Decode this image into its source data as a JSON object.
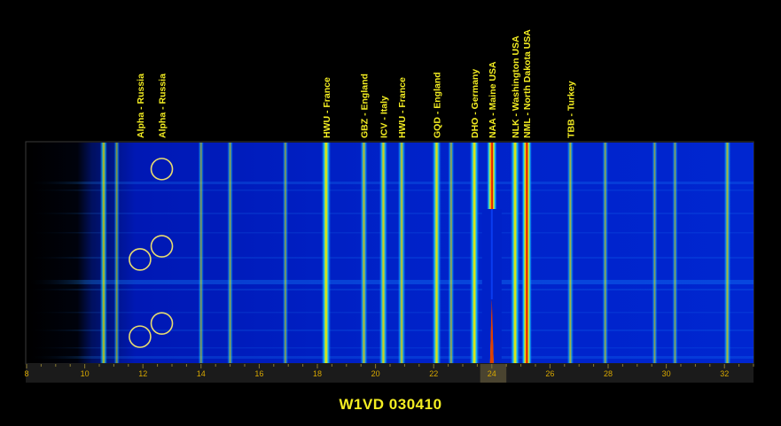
{
  "caption": "W1VD  030410",
  "colors": {
    "background": "#000000",
    "label_text": "#f4ee22",
    "axis_text": "#d8a800",
    "axis_bar": "#1b1b1b",
    "spectrum_low": "#0010a8",
    "spectrum_mid": "#14d8f0",
    "spectrum_high": "#f4e800",
    "spectrum_peak": "#d40000",
    "circle_marker": "#e8dc70"
  },
  "chart_data": {
    "type": "heatmap",
    "title": "",
    "xlabel": "",
    "ylabel": "",
    "x_unit": "kHz",
    "xlim": [
      8,
      33
    ],
    "x_ticks": [
      8,
      10,
      12,
      14,
      16,
      18,
      20,
      22,
      24,
      26,
      28,
      30,
      32
    ],
    "highlight_range": [
      23.6,
      24.5
    ],
    "stations": [
      {
        "label": "Alpha - Russia",
        "freq": 11.9
      },
      {
        "label": "Alpha - Russia",
        "freq": 12.65
      },
      {
        "label": "HWU - France",
        "freq": 18.3
      },
      {
        "label": "GBZ - England",
        "freq": 19.6
      },
      {
        "label": "ICV - Italy",
        "freq": 20.27
      },
      {
        "label": "HWU - France",
        "freq": 20.9
      },
      {
        "label": "GQD - England",
        "freq": 22.1
      },
      {
        "label": "DHO - Germany",
        "freq": 23.4
      },
      {
        "label": "NAA - Maine USA",
        "freq": 24.0
      },
      {
        "label": "NLK - Washington USA",
        "freq": 24.8
      },
      {
        "label": "NML - North Dakota USA",
        "freq": 25.2
      },
      {
        "label": "TBB - Turkey",
        "freq": 26.7
      }
    ],
    "carriers": [
      {
        "freq": 10.65,
        "level": 0.55
      },
      {
        "freq": 11.1,
        "level": 0.3
      },
      {
        "freq": 14.0,
        "level": 0.3
      },
      {
        "freq": 15.0,
        "level": 0.35
      },
      {
        "freq": 16.9,
        "level": 0.3
      },
      {
        "freq": 18.3,
        "level": 0.85
      },
      {
        "freq": 19.6,
        "level": 0.55
      },
      {
        "freq": 20.27,
        "level": 0.7
      },
      {
        "freq": 20.9,
        "level": 0.6
      },
      {
        "freq": 22.1,
        "level": 0.8
      },
      {
        "freq": 22.6,
        "level": 0.4
      },
      {
        "freq": 23.4,
        "level": 0.85
      },
      {
        "freq": 24.0,
        "level": 0.95
      },
      {
        "freq": 24.8,
        "level": 0.85
      },
      {
        "freq": 25.2,
        "level": 0.95
      },
      {
        "freq": 26.7,
        "level": 0.45
      },
      {
        "freq": 27.9,
        "level": 0.35
      },
      {
        "freq": 29.6,
        "level": 0.3
      },
      {
        "freq": 30.3,
        "level": 0.3
      },
      {
        "freq": 32.1,
        "level": 0.5
      }
    ],
    "markers": [
      {
        "freq": 12.65,
        "row": 0.12
      },
      {
        "freq": 12.65,
        "row": 0.47
      },
      {
        "freq": 11.9,
        "row": 0.53
      },
      {
        "freq": 12.65,
        "row": 0.82
      },
      {
        "freq": 11.9,
        "row": 0.88
      }
    ]
  }
}
